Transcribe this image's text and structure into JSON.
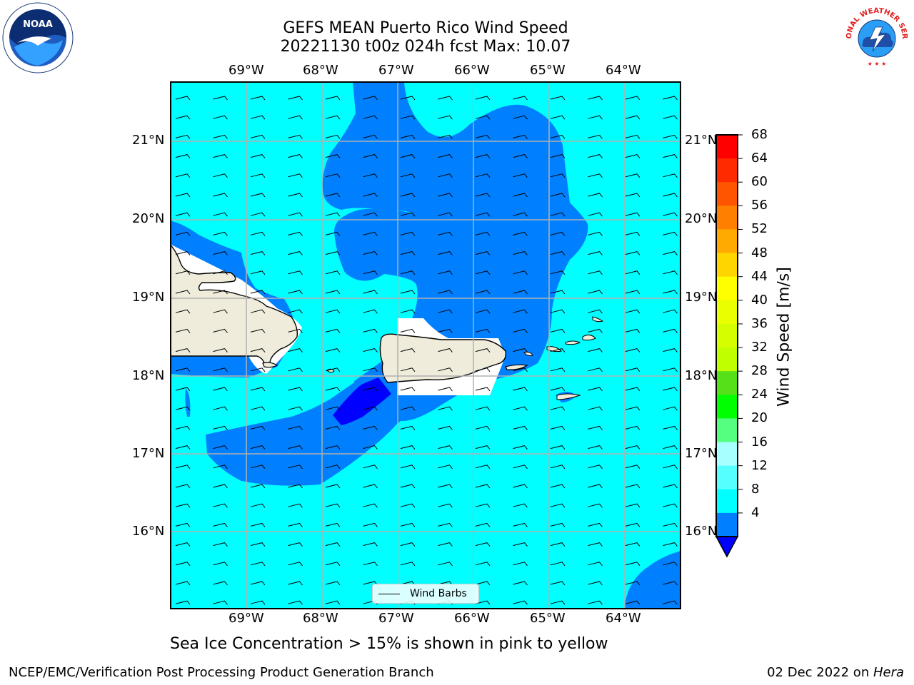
{
  "title": {
    "line1": "GEFS MEAN Puerto Rico Wind Speed",
    "line2": "20221130 t00z 024h fcst   Max: 10.07"
  },
  "logos": {
    "left": "NOAA",
    "right": "NATIONAL WEATHER SERVICE"
  },
  "map": {
    "lon_ticks": [
      "69°W",
      "68°W",
      "67°W",
      "66°W",
      "65°W",
      "64°W"
    ],
    "lat_ticks": [
      "21°N",
      "20°N",
      "19°N",
      "18°N",
      "17°N",
      "16°N"
    ],
    "legend_label": "Wind Barbs",
    "colors": {
      "land": "#efecdc",
      "band_4_8": "#0080ff",
      "band_8_12": "#00ffff",
      "below_4": "#0000ff",
      "grid": "#b0b0b0"
    }
  },
  "colorbar": {
    "title": "Wind Speed [m/s]",
    "ticks": [
      "68",
      "64",
      "60",
      "56",
      "52",
      "48",
      "44",
      "40",
      "36",
      "32",
      "28",
      "24",
      "20",
      "16",
      "12",
      "8",
      "4"
    ],
    "colors_top_to_bottom": [
      "#ff0000",
      "#ff2a00",
      "#ff5500",
      "#ff8000",
      "#ffaa00",
      "#ffd500",
      "#ffff00",
      "#eaff00",
      "#d5ff00",
      "#c0ff00",
      "#55e01a",
      "#00ff00",
      "#55ff80",
      "#a8ffff",
      "#55ffff",
      "#00ffff",
      "#0080ff"
    ],
    "under_color": "#0000ff"
  },
  "footnote": "Sea Ice Concentration > 15% is shown in pink to yellow",
  "credit": "NCEP/EMC/Verification Post Processing Product Generation Branch",
  "date": {
    "prefix": "02 Dec 2022 on ",
    "machine": "Hera"
  }
}
